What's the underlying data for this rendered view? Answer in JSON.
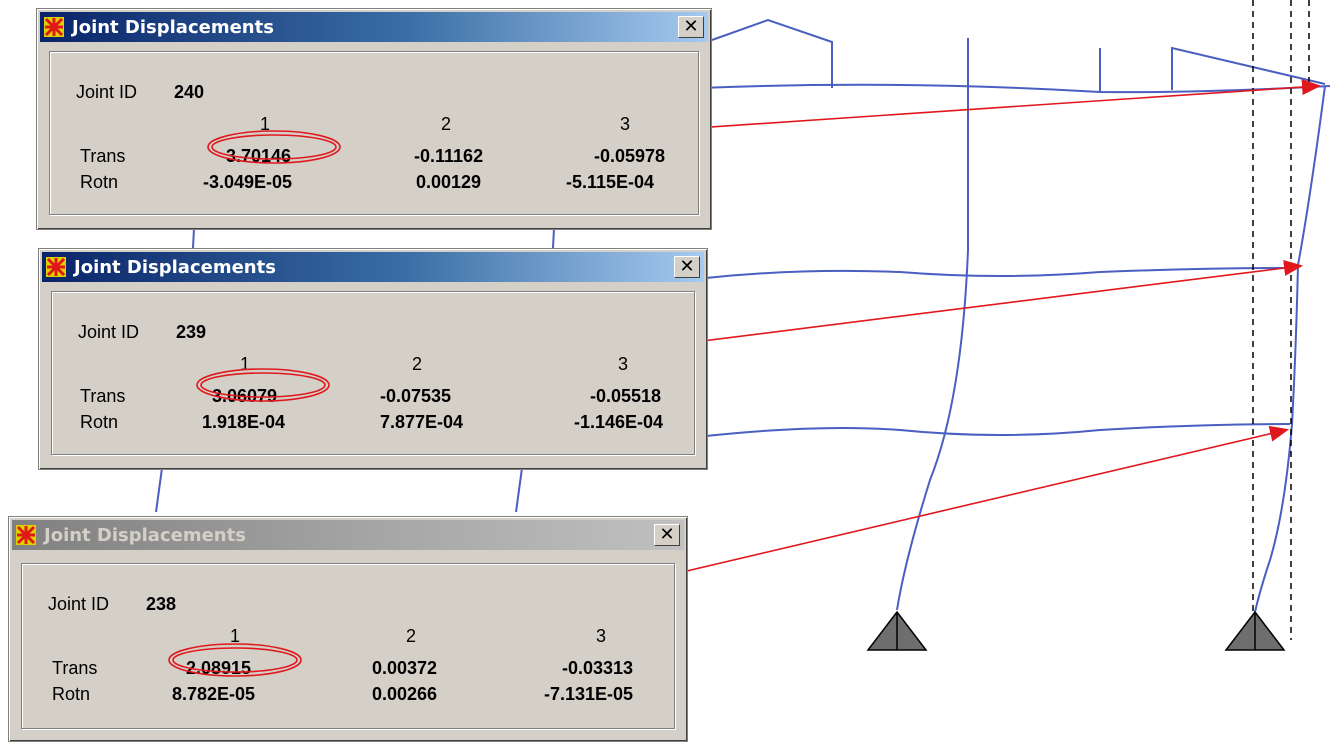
{
  "dialogs": [
    {
      "title": "Joint Displacements",
      "close_glyph": "✕",
      "active": true,
      "joint_label": "Joint ID",
      "joint_id": "240",
      "col_headers": [
        "1",
        "2",
        "3"
      ],
      "trans_label": "Trans",
      "rotn_label": "Rotn",
      "trans": [
        "3.70146",
        "-0.11162",
        "-0.05978"
      ],
      "rotn": [
        "-3.049E-05",
        "0.00129",
        "-5.115E-04"
      ]
    },
    {
      "title": "Joint Displacements",
      "close_glyph": "✕",
      "active": true,
      "joint_label": "Joint ID",
      "joint_id": "239",
      "col_headers": [
        "1",
        "2",
        "3"
      ],
      "trans_label": "Trans",
      "rotn_label": "Rotn",
      "trans": [
        "3.06079",
        "-0.07535",
        "-0.05518"
      ],
      "rotn": [
        "1.918E-04",
        "7.877E-04",
        "-1.146E-04"
      ]
    },
    {
      "title": "Joint Displacements",
      "close_glyph": "✕",
      "active": false,
      "joint_label": "Joint ID",
      "joint_id": "238",
      "col_headers": [
        "1",
        "2",
        "3"
      ],
      "trans_label": "Trans",
      "rotn_label": "Rotn",
      "trans": [
        "2.08915",
        "0.00372",
        "-0.03313"
      ],
      "rotn": [
        "8.782E-05",
        "0.00266",
        "-7.131E-05"
      ]
    }
  ],
  "icons": {
    "app_icon": "sap2000-app-icon",
    "support_icon": "pin-support-icon"
  },
  "colors": {
    "frame_line": "#4a5fc1",
    "arrow": "#e0181e",
    "highlight_ellipse": "#e0181e",
    "support_fill": "#6e6e6e",
    "dialog_bg": "#d4d0c8",
    "titlebar_active": "#0a246a",
    "titlebar_inactive": "#808080"
  }
}
